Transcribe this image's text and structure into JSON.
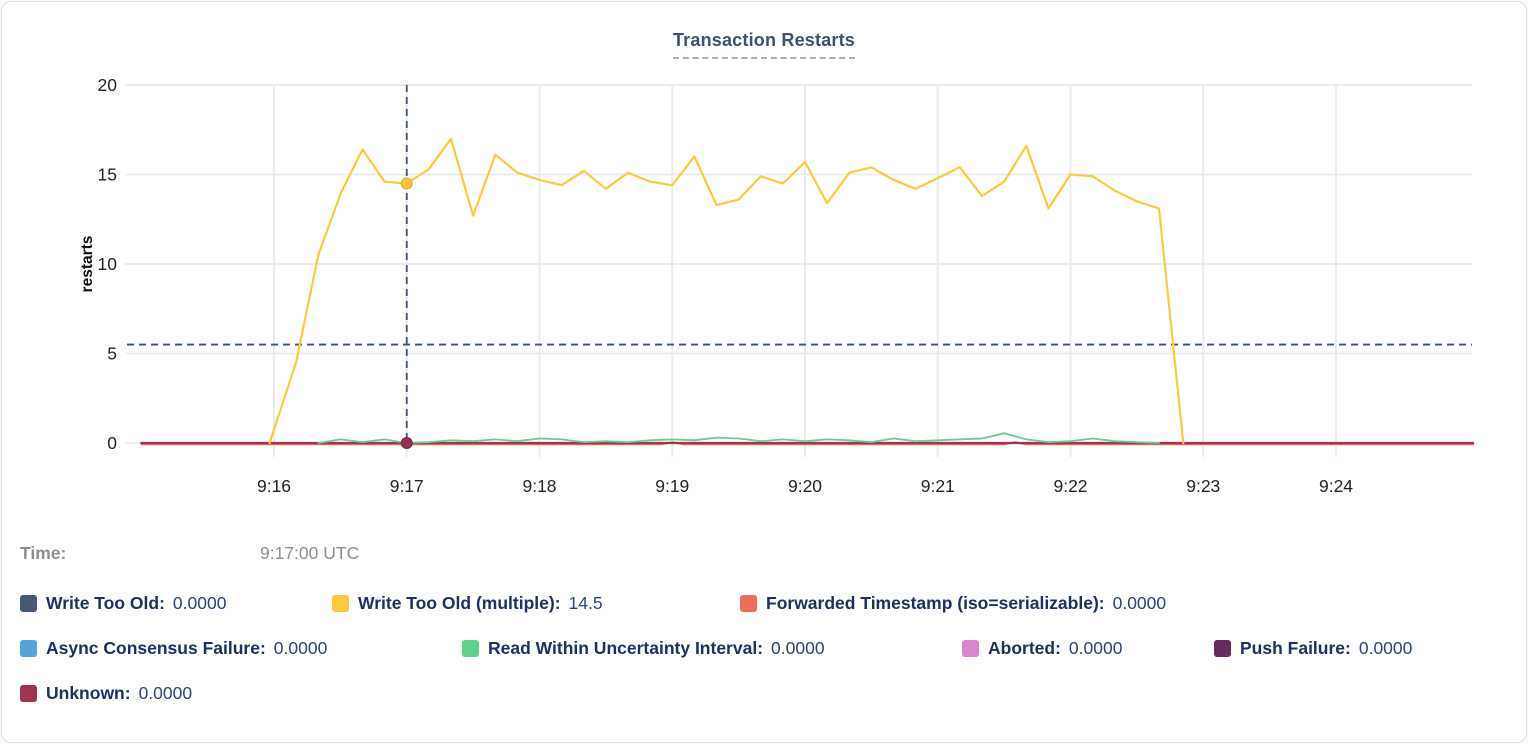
{
  "card": {
    "title": "Transaction Restarts"
  },
  "tooltip": {
    "time_label": "Time:",
    "time_value": "9:17:00 UTC"
  },
  "legend": {
    "rows": [
      [
        {
          "label": "Write Too Old:",
          "value": "0.0000",
          "color": "#475872"
        },
        {
          "label": "Write Too Old (multiple):",
          "value": "14.5",
          "color": "#fcca3d"
        },
        {
          "label": "Forwarded Timestamp (iso=serializable):",
          "value": "0.0000",
          "color": "#ee6e5d"
        }
      ],
      [
        {
          "label": "Async Consensus Failure:",
          "value": "0.0000",
          "color": "#57a1dc"
        },
        {
          "label": "Read Within Uncertainty Interval:",
          "value": "0.0000",
          "color": "#5ed28c"
        },
        {
          "label": "Aborted:",
          "value": "0.0000",
          "color": "#d887cd"
        },
        {
          "label": "Push Failure:",
          "value": "0.0000",
          "color": "#652a60"
        }
      ],
      [
        {
          "label": "Unknown:",
          "value": "0.0000",
          "color": "#a03552"
        }
      ]
    ]
  },
  "chart_data": {
    "type": "line",
    "title": "Transaction Restarts",
    "xlabel": "",
    "ylabel": "restarts",
    "ylim": [
      0,
      20
    ],
    "yticks": [
      0,
      5,
      10,
      15,
      20
    ],
    "xticks": [
      "9:16",
      "9:17",
      "9:18",
      "9:19",
      "9:20",
      "9:21",
      "9:22",
      "9:23",
      "9:24"
    ],
    "x_range": [
      "9:14:54",
      "9:25:02"
    ],
    "grid": true,
    "legend_position": "bottom",
    "grid_color": "#ececec",
    "tick_text_color": "#242424",
    "crosshair": {
      "x": "9:17:00",
      "y_value": 5.5,
      "color": "#3e5577"
    },
    "hover_points": [
      {
        "series": "Write Too Old (multiple)",
        "time": "9:17:00",
        "value": 14.5,
        "color": "#fcc73a",
        "stroke": "#e2a926"
      },
      {
        "series": "Unknown",
        "time": "9:17:00",
        "value": 0,
        "color": "#963052",
        "stroke": "#7c2743"
      }
    ],
    "series": [
      {
        "name": "Write Too Old",
        "color": "#475872",
        "width": 1.6,
        "points": [
          [
            "9:15:00",
            0
          ],
          [
            "9:25:02",
            0
          ]
        ]
      },
      {
        "name": "Write Too Old (multiple)",
        "color": "#fcca3d",
        "width": 2.2,
        "points": [
          [
            "9:15:58",
            0
          ],
          [
            "9:16:10",
            4.5
          ],
          [
            "9:16:20",
            10.5
          ],
          [
            "9:16:30",
            13.9
          ],
          [
            "9:16:40",
            16.4
          ],
          [
            "9:16:50",
            14.6
          ],
          [
            "9:17:00",
            14.5
          ],
          [
            "9:17:10",
            15.3
          ],
          [
            "9:17:20",
            17.0
          ],
          [
            "9:17:30",
            12.7
          ],
          [
            "9:17:40",
            16.1
          ],
          [
            "9:17:50",
            15.1
          ],
          [
            "9:18:00",
            14.7
          ],
          [
            "9:18:10",
            14.4
          ],
          [
            "9:18:20",
            15.2
          ],
          [
            "9:18:30",
            14.2
          ],
          [
            "9:18:40",
            15.1
          ],
          [
            "9:18:50",
            14.6
          ],
          [
            "9:19:00",
            14.4
          ],
          [
            "9:19:10",
            16.0
          ],
          [
            "9:19:20",
            13.3
          ],
          [
            "9:19:30",
            13.6
          ],
          [
            "9:19:40",
            14.9
          ],
          [
            "9:19:50",
            14.5
          ],
          [
            "9:20:00",
            15.7
          ],
          [
            "9:20:10",
            13.4
          ],
          [
            "9:20:20",
            15.1
          ],
          [
            "9:20:30",
            15.4
          ],
          [
            "9:20:40",
            14.7
          ],
          [
            "9:20:50",
            14.2
          ],
          [
            "9:21:00",
            14.8
          ],
          [
            "9:21:10",
            15.4
          ],
          [
            "9:21:20",
            13.8
          ],
          [
            "9:21:30",
            14.6
          ],
          [
            "9:21:40",
            16.6
          ],
          [
            "9:21:50",
            13.1
          ],
          [
            "9:22:00",
            15.0
          ],
          [
            "9:22:10",
            14.9
          ],
          [
            "9:22:20",
            14.1
          ],
          [
            "9:22:30",
            13.5
          ],
          [
            "9:22:40",
            13.1
          ],
          [
            "9:22:51",
            0
          ]
        ]
      },
      {
        "name": "Forwarded Timestamp (iso=serializable)",
        "color": "#ee6e5d",
        "width": 2,
        "points": [
          [
            "9:15:00",
            0
          ],
          [
            "9:18:55",
            0
          ],
          [
            "9:19:00",
            0.12
          ],
          [
            "9:19:05",
            0
          ],
          [
            "9:21:30",
            0
          ],
          [
            "9:21:35",
            0.12
          ],
          [
            "9:21:40",
            0
          ],
          [
            "9:25:02",
            0
          ]
        ]
      },
      {
        "name": "Async Consensus Failure",
        "color": "#57a1dc",
        "width": 1.6,
        "points": [
          [
            "9:15:00",
            0
          ],
          [
            "9:25:02",
            0
          ]
        ]
      },
      {
        "name": "Read Within Uncertainty Interval",
        "color": "#5ed28c",
        "width": 1.8,
        "points": [
          [
            "9:16:20",
            0
          ],
          [
            "9:16:30",
            0.2
          ],
          [
            "9:16:40",
            0.05
          ],
          [
            "9:16:50",
            0.2
          ],
          [
            "9:17:00",
            0
          ],
          [
            "9:17:10",
            0.05
          ],
          [
            "9:17:20",
            0.15
          ],
          [
            "9:17:30",
            0.1
          ],
          [
            "9:17:40",
            0.2
          ],
          [
            "9:17:50",
            0.1
          ],
          [
            "9:18:00",
            0.25
          ],
          [
            "9:18:10",
            0.2
          ],
          [
            "9:18:20",
            0.05
          ],
          [
            "9:18:30",
            0.1
          ],
          [
            "9:18:40",
            0.05
          ],
          [
            "9:18:50",
            0.15
          ],
          [
            "9:19:00",
            0.2
          ],
          [
            "9:19:10",
            0.15
          ],
          [
            "9:19:20",
            0.3
          ],
          [
            "9:19:30",
            0.25
          ],
          [
            "9:19:40",
            0.1
          ],
          [
            "9:19:50",
            0.2
          ],
          [
            "9:20:00",
            0.1
          ],
          [
            "9:20:10",
            0.2
          ],
          [
            "9:20:20",
            0.15
          ],
          [
            "9:20:30",
            0.05
          ],
          [
            "9:20:40",
            0.25
          ],
          [
            "9:20:50",
            0.1
          ],
          [
            "9:21:00",
            0.15
          ],
          [
            "9:21:10",
            0.2
          ],
          [
            "9:21:20",
            0.25
          ],
          [
            "9:21:30",
            0.55
          ],
          [
            "9:21:40",
            0.2
          ],
          [
            "9:21:50",
            0.05
          ],
          [
            "9:22:00",
            0.1
          ],
          [
            "9:22:10",
            0.25
          ],
          [
            "9:22:20",
            0.1
          ],
          [
            "9:22:30",
            0.05
          ],
          [
            "9:22:40",
            0
          ]
        ]
      },
      {
        "name": "Aborted",
        "color": "#d887cd",
        "width": 1.6,
        "points": [
          [
            "9:15:00",
            0
          ],
          [
            "9:25:02",
            0
          ]
        ]
      },
      {
        "name": "Push Failure",
        "color": "#652a60",
        "width": 1.6,
        "points": [
          [
            "9:15:00",
            0
          ],
          [
            "9:25:02",
            0
          ]
        ]
      },
      {
        "name": "Unknown",
        "color": "#a03552",
        "width": 2.2,
        "points": [
          [
            "9:15:00",
            0
          ],
          [
            "9:25:02",
            0
          ]
        ]
      }
    ]
  }
}
